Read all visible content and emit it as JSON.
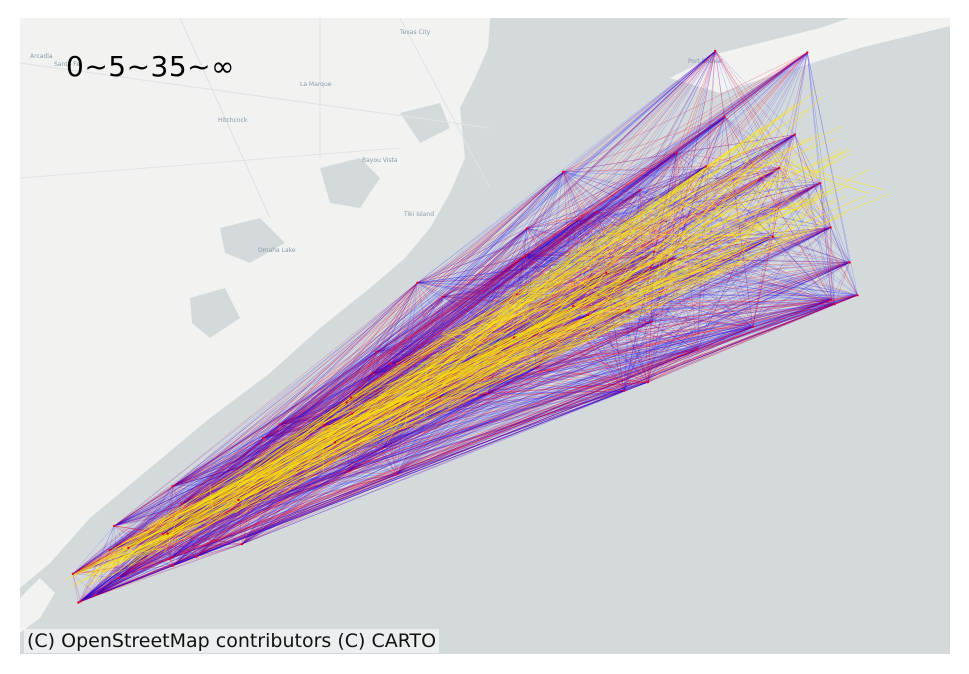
{
  "title": "0~5~35~∞",
  "attribution": "(C) OpenStreetMap contributors (C) CARTO",
  "place_labels": [
    "Texas City",
    "Arcadia",
    "Santa Fe",
    "La Marque",
    "Hitchcock",
    "Port Bolivar",
    "Bayou Vista",
    "Tiki Island",
    "Omaha Lake"
  ],
  "colors": {
    "water": "#d4dadc",
    "land": "#f2f3f1",
    "low_band": "#0000ff",
    "mid_band": "#e8002a",
    "high_band": "#ffe600"
  },
  "legend_bands": [
    "0~5",
    "5~35",
    "35~∞"
  ]
}
